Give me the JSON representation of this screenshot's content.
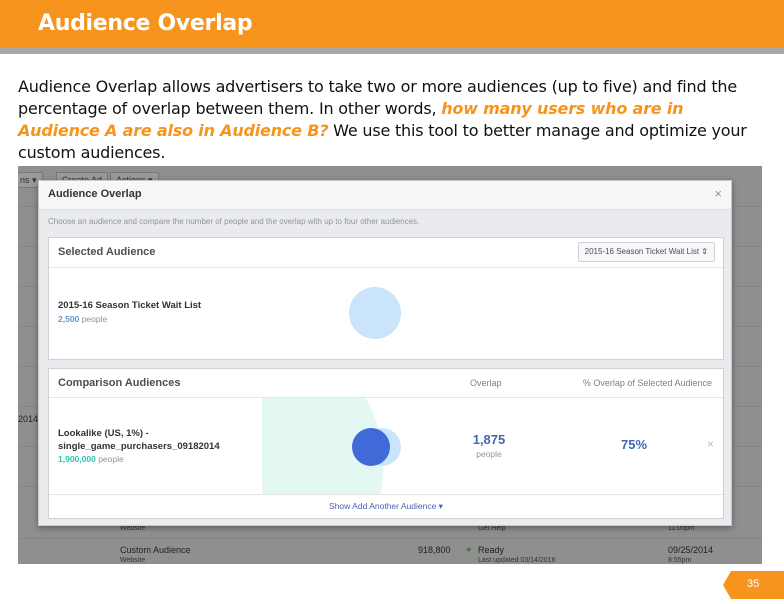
{
  "slide": {
    "title": "Audience Overlap",
    "para_part1": "Audience Overlap allows advertisers to take two or more audiences (up to five) and find the percentage of overlap between them. In other words, ",
    "para_highlight": "how many users who are in Audience A are also in Audience B?",
    "para_part2": "  We use this tool to better manage and optimize your custom audiences.",
    "page_number": "35",
    "accent_color": "#f7941d"
  },
  "background_ui": {
    "toolbar_partial": "ns ▾",
    "create_ad": "Create Ad",
    "actions": "Actions ▾",
    "left_partial": "2014",
    "row_website_1": "Website",
    "row_get_help": "Get Help",
    "row_time_1": "11:05pm",
    "row_custom_audience": "Custom Audience",
    "row_website_2": "Website",
    "row_size": "918,800",
    "row_status": "Ready",
    "row_updated": "Last updated 03/14/2016",
    "row_date": "09/25/2014",
    "row_time_2": "8:55pm"
  },
  "modal": {
    "title": "Audience Overlap",
    "close": "×",
    "description": "Choose an audience and compare the number of people and the overlap with up to four other audiences.",
    "selected": {
      "header": "Selected Audience",
      "dropdown_value": "2015-16 Season Ticket Wait List ⇕",
      "audience_name": "2015-16 Season Ticket Wait List",
      "count": "2,500",
      "count_unit": "people"
    },
    "comparison": {
      "header": "Comparison Audiences",
      "col_overlap": "Overlap",
      "col_pct": "% Overlap of Selected Audience",
      "audience_name_line1": "Lookalike (US, 1%) -",
      "audience_name_line2": "single_game_purchasers_09182014",
      "count": "1,900,000",
      "count_unit": "people",
      "overlap": "1,875",
      "overlap_unit": "people",
      "overlap_pct": "75%",
      "overlap_fraction": 0.75,
      "remove": "×",
      "show_add": "Show Add Another Audience ▾"
    }
  }
}
